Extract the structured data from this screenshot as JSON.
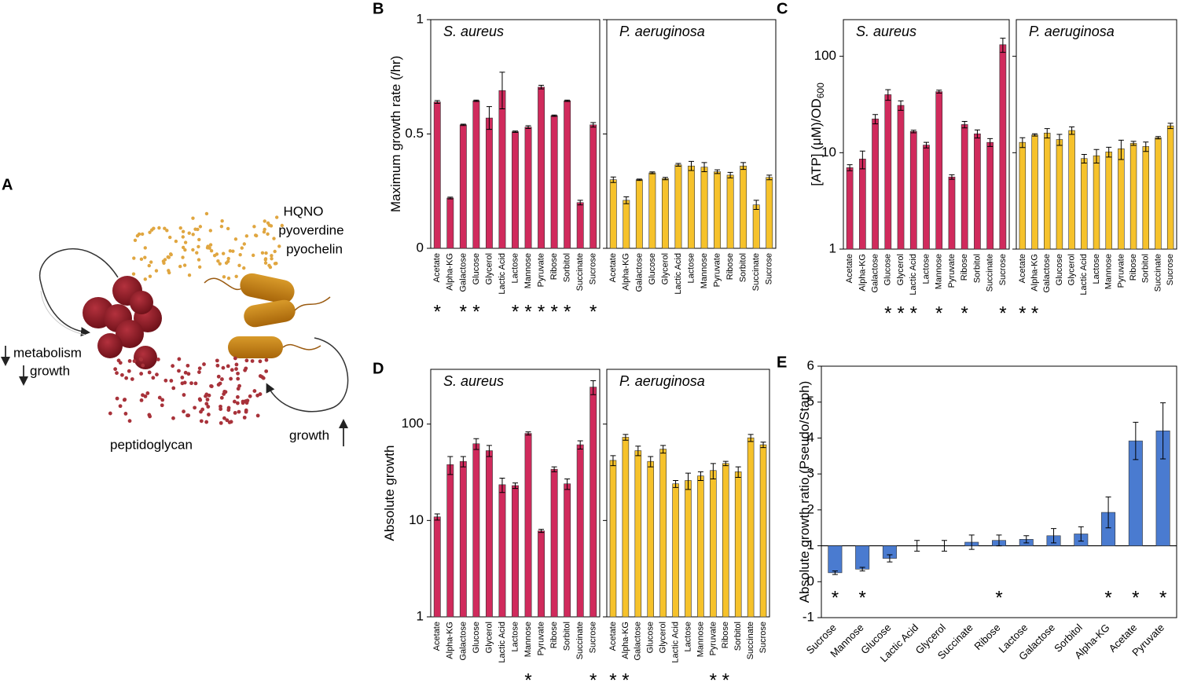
{
  "panel_labels": [
    "A",
    "B",
    "C",
    "D",
    "E"
  ],
  "diagram": {
    "secreted": [
      "HQNO",
      "pyoverdine",
      "pyochelin"
    ],
    "staph_effects": [
      "metabolism",
      "growth"
    ],
    "staph_product": "peptidoglycan",
    "pseudo_effect": "growth"
  },
  "chart_data": [
    {
      "type": "bar",
      "subtitle": "S. aureus",
      "ylabel": "Maximum growth rate (/hr)",
      "categories": [
        "Acetate",
        "Alpha-KG",
        "Galactose",
        "Glucose",
        "Glycerol",
        "Lactic Acid",
        "Lactose",
        "Mannose",
        "Pyruvate",
        "Ribose",
        "Sorbitol",
        "Succinate",
        "Sucrose"
      ],
      "values": [
        0.64,
        0.22,
        0.54,
        0.645,
        0.57,
        0.69,
        0.51,
        0.53,
        0.705,
        0.58,
        0.645,
        0.2,
        0.54
      ],
      "errors": [
        0.006,
        0.004,
        0.003,
        0.003,
        0.05,
        0.08,
        0.003,
        0.006,
        0.008,
        0.003,
        0.003,
        0.01,
        0.01
      ],
      "color": "#d02a5c",
      "ylim": [
        0,
        1
      ],
      "yticks": [
        0,
        0.5,
        1
      ],
      "annotations": [
        "*",
        null,
        "*",
        "*",
        null,
        null,
        "*",
        "*",
        "*",
        "*",
        "*",
        null,
        "*"
      ]
    },
    {
      "type": "bar",
      "subtitle": "P. aeruginosa",
      "categories": [
        "Acetate",
        "Alpha-KG",
        "Galactose",
        "Glucose",
        "Glycerol",
        "Lactic Acid",
        "Lactose",
        "Mannose",
        "Pyruvate",
        "Ribose",
        "Sorbitol",
        "Succinate",
        "Sucrose"
      ],
      "values": [
        0.3,
        0.21,
        0.3,
        0.33,
        0.305,
        0.365,
        0.36,
        0.355,
        0.335,
        0.32,
        0.36,
        0.19,
        0.31
      ],
      "errors": [
        0.012,
        0.015,
        0.003,
        0.004,
        0.005,
        0.006,
        0.02,
        0.02,
        0.008,
        0.012,
        0.015,
        0.02,
        0.01
      ],
      "color": "#f6c22b",
      "ylim": [
        0,
        1
      ],
      "yticks": [
        0,
        0.5,
        1
      ],
      "ytick_labels": false
    },
    {
      "type": "bar",
      "subtitle": "S. aureus",
      "ylabel": "[ATP] (μM)/OD",
      "ylabel_sub": "600",
      "log": true,
      "categories": [
        "Acetate",
        "Alpha-KG",
        "Galactose",
        "Glucose",
        "Glycerol",
        "Lactic Acid",
        "Lactose",
        "Mannose",
        "Pyruvate",
        "Ribose",
        "Sorbitol",
        "Succinate",
        "Sucrose"
      ],
      "values": [
        7,
        8.6,
        22.4,
        40,
        31,
        16.6,
        12,
        43,
        5.6,
        19.6,
        15.7,
        12.8,
        132
      ],
      "errors": [
        0.5,
        1.8,
        2.5,
        5,
        3.5,
        0.5,
        0.8,
        1.5,
        0.3,
        1.5,
        1.5,
        1.2,
        22
      ],
      "color": "#d02a5c",
      "ylim": [
        1,
        240
      ],
      "yticks": [
        1,
        10,
        100
      ],
      "annotations": [
        null,
        null,
        null,
        "*",
        "*",
        "*",
        null,
        "*",
        null,
        "*",
        null,
        null,
        "*"
      ]
    },
    {
      "type": "bar",
      "subtitle": "P. aeruginosa",
      "log": true,
      "categories": [
        "Acetate",
        "Alpha-KG",
        "Galactose",
        "Glucose",
        "Glycerol",
        "Lactic Acid",
        "Lactose",
        "Mannose",
        "Pyruvate",
        "Ribose",
        "Sorbitol",
        "Succinate",
        "Sucrose"
      ],
      "values": [
        12.8,
        15.3,
        16,
        13.7,
        17,
        8.7,
        9.3,
        10.2,
        11,
        12.5,
        11.6,
        14.3,
        19
      ],
      "errors": [
        1.5,
        0.4,
        1.8,
        1.8,
        1.5,
        0.9,
        1.5,
        1.2,
        2.5,
        0.6,
        1.3,
        0.4,
        1.2
      ],
      "color": "#f6c22b",
      "ylim": [
        1,
        240
      ],
      "yticks": [
        1,
        10,
        100
      ],
      "ytick_labels": false,
      "annotations": [
        "*",
        "*",
        null,
        null,
        null,
        null,
        null,
        null,
        null,
        null,
        null,
        null,
        null
      ]
    },
    {
      "type": "bar",
      "subtitle": "S. aureus",
      "ylabel": "Absolute growth",
      "log": true,
      "categories": [
        "Acetate",
        "Alpha-KG",
        "Galactose",
        "Glucose",
        "Glycerol",
        "Lactic Acid",
        "Lactose",
        "Mannose",
        "Pyruvate",
        "Ribose",
        "Sorbitol",
        "Succinate",
        "Sucrose"
      ],
      "values": [
        10.9,
        38,
        41,
        62.5,
        53,
        23.5,
        23,
        80,
        7.8,
        34,
        24,
        61,
        242
      ],
      "errors": [
        0.8,
        8,
        5,
        8,
        7,
        4,
        1.5,
        3,
        0.3,
        2,
        3,
        6,
        40
      ],
      "color": "#d02a5c",
      "ylim": [
        1,
        370
      ],
      "yticks": [
        1,
        10,
        100
      ],
      "annotations": [
        null,
        null,
        null,
        null,
        null,
        null,
        null,
        "*",
        null,
        null,
        null,
        null,
        "*"
      ]
    },
    {
      "type": "bar",
      "subtitle": "P. aeruginosa",
      "log": true,
      "categories": [
        "Acetate",
        "Alpha-KG",
        "Galactose",
        "Glucose",
        "Glycerol",
        "Lactic Acid",
        "Lactose",
        "Mannose",
        "Pyruvate",
        "Ribose",
        "Sorbitol",
        "Succinate",
        "Sucrose"
      ],
      "values": [
        42,
        73,
        53,
        41,
        55,
        24,
        26,
        29,
        33,
        39,
        32,
        72,
        61
      ],
      "errors": [
        5,
        5,
        6,
        5,
        5,
        2,
        5,
        3,
        6,
        2,
        4,
        6,
        4
      ],
      "color": "#f6c22b",
      "ylim": [
        1,
        370
      ],
      "yticks": [
        1,
        10,
        100
      ],
      "ytick_labels": false,
      "annotations": [
        "*",
        "*",
        null,
        null,
        null,
        null,
        null,
        null,
        "*",
        "*",
        null,
        null,
        null
      ]
    },
    {
      "type": "bar",
      "ylabel": "Absolute growth ratio (Pseudo/Staph)",
      "categories": [
        "Sucrose",
        "Mannose",
        "Glucose",
        "Lactic Acid",
        "Glycerol",
        "Succinate",
        "Ribose",
        "Lactose",
        "Galactose",
        "Sorbitol",
        "Alpha-KG",
        "Acetate",
        "Pyruvate"
      ],
      "values": [
        0.25,
        0.35,
        0.65,
        1.0,
        1.0,
        1.1,
        1.15,
        1.18,
        1.28,
        1.33,
        1.93,
        3.92,
        4.2
      ],
      "errors": [
        0.05,
        0.05,
        0.1,
        0.15,
        0.15,
        0.2,
        0.15,
        0.1,
        0.2,
        0.2,
        0.43,
        0.52,
        0.78
      ],
      "color": "#4a7bd0",
      "ylim": [
        -1,
        6
      ],
      "yticks": [
        -1,
        0,
        1,
        2,
        3,
        4,
        5,
        6
      ],
      "baseline": 1,
      "annotations": [
        "*",
        "*",
        null,
        null,
        null,
        null,
        "*",
        null,
        null,
        null,
        "*",
        "*",
        "*"
      ]
    }
  ]
}
